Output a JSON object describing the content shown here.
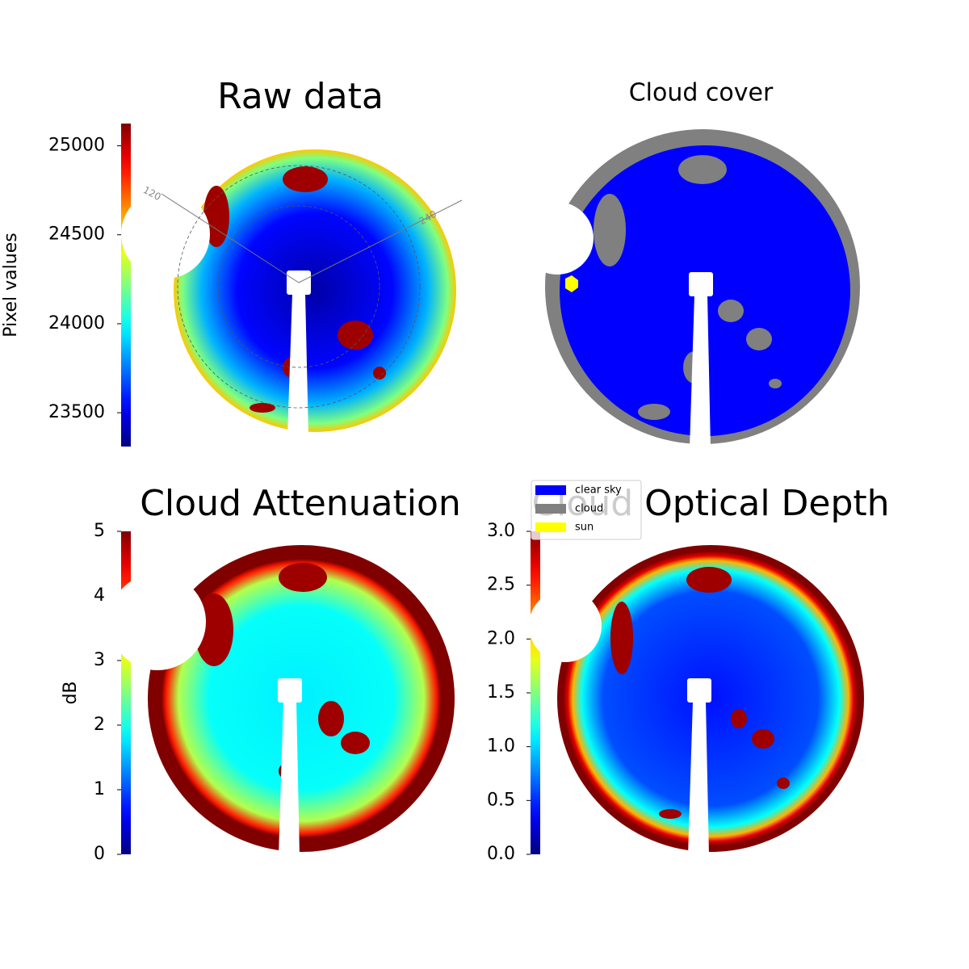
{
  "chart_data": [
    {
      "type": "image",
      "title": "Raw data",
      "colorbar_label": "Pixel values",
      "colormap": "jet",
      "ylim": [
        23310,
        25125
      ],
      "yticks": [
        23500,
        24000,
        24500,
        25000
      ],
      "annotations": [
        "120",
        "240"
      ]
    },
    {
      "type": "categorical-image",
      "title": "Cloud cover",
      "categories": [
        "clear sky",
        "cloud",
        "sun"
      ],
      "colors": [
        "#0000ff",
        "#808080",
        "#ffff00"
      ],
      "legend": "lower left"
    },
    {
      "type": "image",
      "title": "Cloud Attenuation",
      "colorbar_label": "dB",
      "colormap": "jet",
      "ylim": [
        0,
        5
      ],
      "yticks": [
        0,
        1,
        2,
        3,
        4,
        5
      ]
    },
    {
      "type": "image",
      "title": "Cloud Optical Depth",
      "colormap": "jet",
      "ylim": [
        0,
        3
      ],
      "yticks": [
        {
          "value": 0,
          "label": "0.0"
        },
        0.5,
        {
          "value": 1,
          "label": "1.0"
        },
        1.5,
        {
          "value": 2,
          "label": "2.0"
        },
        2.5,
        {
          "value": 3,
          "label": "3.0"
        }
      ]
    }
  ]
}
